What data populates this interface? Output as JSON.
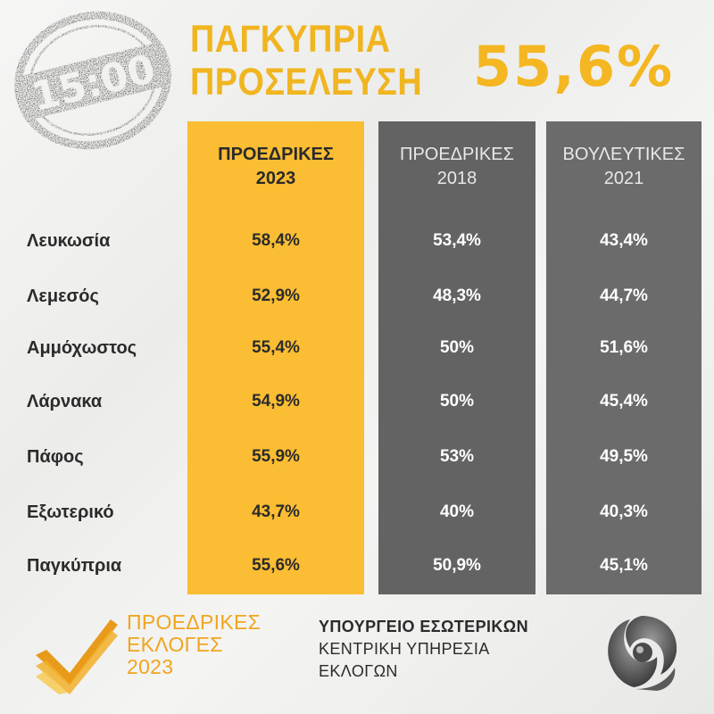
{
  "time": "15:00",
  "title": {
    "line1": "ΠΑΓΚΥΠΡΙΑ",
    "line2": "ΠΡΟΣΕΛΕΥΣΗ"
  },
  "turnout": "55,6%",
  "columns": [
    {
      "line1": "ΠΡΟΕΔΡΙΚΕΣ",
      "line2": "2023"
    },
    {
      "line1": "ΠΡΟΕΔΡΙΚΕΣ",
      "line2": "2018"
    },
    {
      "line1": "ΒΟΥΛΕΥΤΙΚΕΣ",
      "line2": "2021"
    }
  ],
  "rows": [
    {
      "label": "Λευκωσία",
      "values": [
        "58,4%",
        "53,4%",
        "43,4%"
      ]
    },
    {
      "label": "Λεμεσός",
      "values": [
        "52,9%",
        "48,3%",
        "44,7%"
      ]
    },
    {
      "label": "Αμμόχωστος",
      "values": [
        "55,4%",
        "50%",
        "51,6%"
      ]
    },
    {
      "label": "Λάρνακα",
      "values": [
        "54,9%",
        "50%",
        "45,4%"
      ]
    },
    {
      "label": "Πάφος",
      "values": [
        "55,9%",
        "53%",
        "49,5%"
      ]
    },
    {
      "label": "Εξωτερικό",
      "values": [
        "43,7%",
        "40%",
        "40,3%"
      ]
    },
    {
      "label": "Παγκύπρια",
      "values": [
        "55,6%",
        "50,9%",
        "45,1%"
      ]
    }
  ],
  "footer": {
    "logo": {
      "line1": "ΠΡΟΕΔΡΙΚΕΣ",
      "line2": "ΕΚΛΟΓΕΣ",
      "line3": "2023"
    },
    "ministry": {
      "line1": "ΥΠΟΥΡΓΕΙΟ ΕΣΩΤΕΡΙΚΩΝ",
      "line2": "ΚΕΝΤΡΙΚΗ ΥΠΗΡΕΣΙΑ",
      "line3": "ΕΚΛΟΓΩΝ"
    }
  },
  "colors": {
    "accent": "#f4b722",
    "col2023": "#fbbd33",
    "col2018": "#636363",
    "col2021": "#6b6b6b",
    "text": "#2b2b2b"
  },
  "icons": {
    "stamp": "time-stamp-icon",
    "logo": "checkmark-logo-icon",
    "emblem": "ministry-emblem-icon"
  }
}
